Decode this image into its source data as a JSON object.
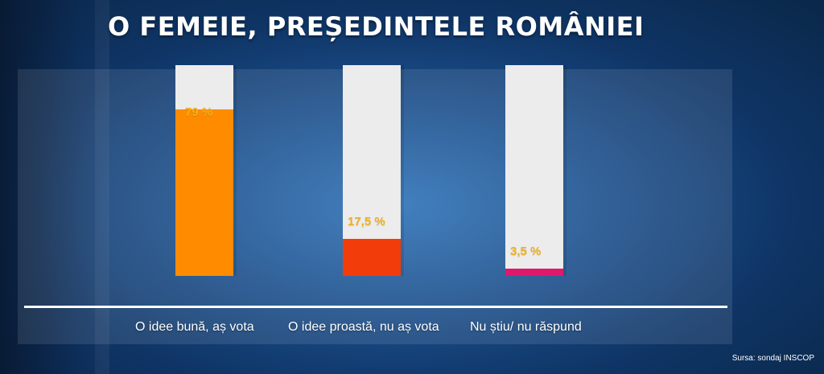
{
  "chart_data": {
    "type": "bar",
    "title": "O FEMEIE, PREȘEDINTELE ROMÂNIEI",
    "categories": [
      "O idee bună, aș vota",
      "O idee proastă, nu aș vota",
      "Nu știu/ nu răspund"
    ],
    "values": [
      79,
      17.5,
      3.5
    ],
    "value_labels": [
      "79 %",
      "17,5 %",
      "3,5 %"
    ],
    "colors": [
      "#ff8c00",
      "#f23d0a",
      "#e0186c"
    ],
    "ylim": [
      0,
      100
    ],
    "grid": false,
    "legend": "none"
  },
  "source": "Sursa: sondaj INSCOP"
}
